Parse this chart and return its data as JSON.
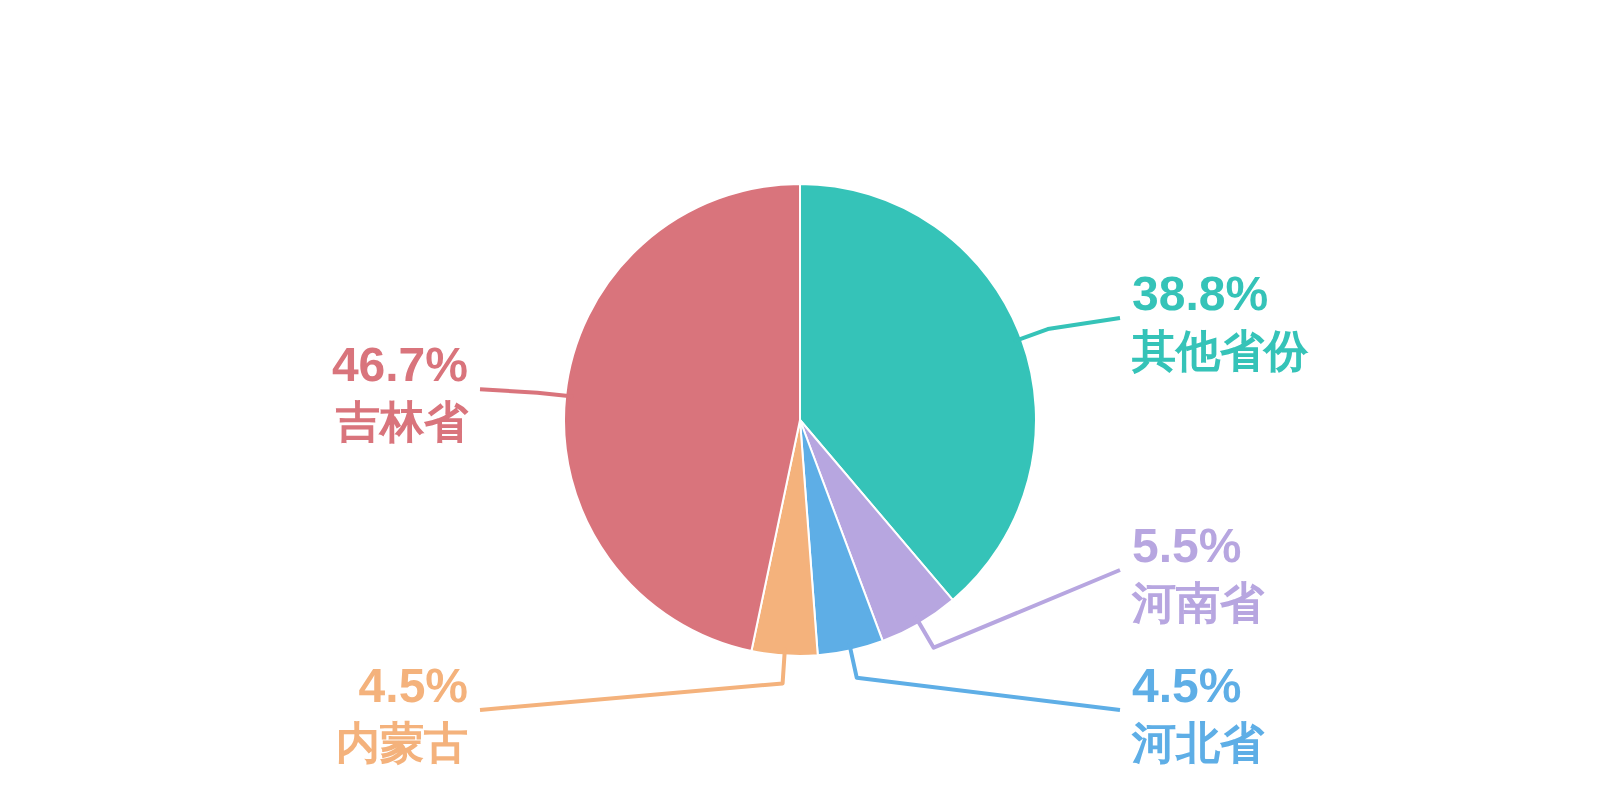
{
  "chart_data": {
    "type": "pie",
    "categories": [
      "其他省份",
      "河南省",
      "河北省",
      "内蒙古",
      "吉林省"
    ],
    "values": [
      38.8,
      5.5,
      4.5,
      4.5,
      46.7
    ],
    "colors": [
      "#35c3b8",
      "#b7a6e0",
      "#5eaee6",
      "#f4b27c",
      "#d9747c"
    ],
    "value_labels": [
      "38.8%",
      "5.5%",
      "4.5%",
      "4.5%",
      "46.7%"
    ]
  }
}
